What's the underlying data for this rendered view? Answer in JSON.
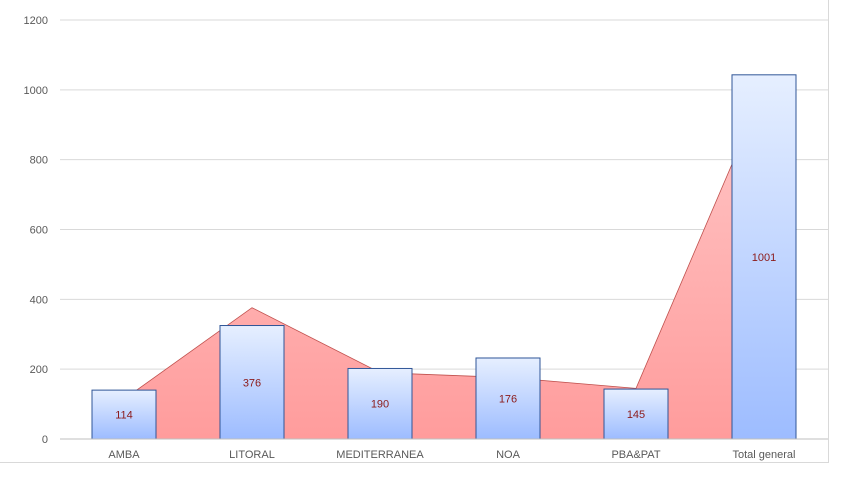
{
  "chart_data": {
    "type": "bar",
    "categories": [
      "AMBA",
      "LITORAL",
      "MEDITERRANEA",
      "NOA",
      "PBA&PAT",
      "Total general"
    ],
    "series": [
      {
        "type": "bar",
        "values": [
          140,
          325,
          202,
          232,
          143,
          1043
        ]
      },
      {
        "type": "area",
        "values": [
          114,
          376,
          190,
          176,
          145,
          1001
        ]
      }
    ],
    "data_labels": [
      "114",
      "376",
      "190",
      "176",
      "145",
      "1001"
    ],
    "yticks": [
      "0",
      "200",
      "400",
      "600",
      "800",
      "1000",
      "1200"
    ],
    "ylim": [
      0,
      1200
    ],
    "grid": true,
    "colors": {
      "area_top": "#ffc7c7",
      "area_bottom": "#ff9c9c",
      "area_stroke": "#c0504d",
      "bar_top": "#e6efff",
      "bar_bottom": "#9dbcff",
      "bar_stroke": "#2f5597",
      "grid": "#d9d9d9",
      "label": "#8b1a1a"
    }
  }
}
